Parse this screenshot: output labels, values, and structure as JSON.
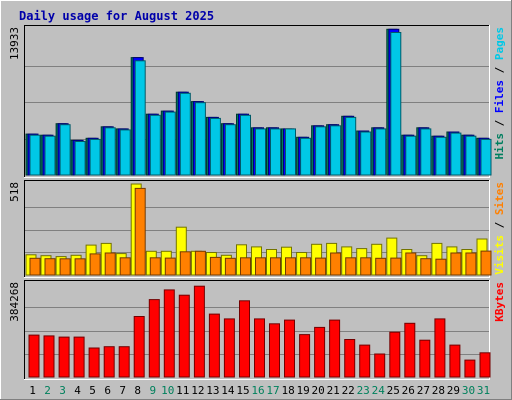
{
  "chart_data": {
    "type": "bar",
    "title": "Daily usage for August 2025",
    "colors": {
      "background": "#c0c0c0",
      "title": "#0000aa",
      "hits": "#007f5f",
      "files": "#0000ff",
      "pages": "#00c8e6",
      "visits": "#ffff00",
      "sites": "#ff8000",
      "kbytes": "#ff0000",
      "weekend_label": "#00805c",
      "weekday_label": "#000000"
    },
    "x": [
      "1",
      "2",
      "3",
      "4",
      "5",
      "6",
      "7",
      "8",
      "9",
      "10",
      "11",
      "12",
      "13",
      "14",
      "15",
      "16",
      "17",
      "18",
      "19",
      "20",
      "21",
      "22",
      "23",
      "24",
      "25",
      "26",
      "27",
      "28",
      "29",
      "30",
      "31"
    ],
    "weekend": [
      false,
      true,
      true,
      false,
      false,
      false,
      false,
      false,
      true,
      true,
      false,
      false,
      false,
      false,
      false,
      true,
      true,
      false,
      false,
      false,
      false,
      false,
      true,
      true,
      false,
      false,
      false,
      false,
      false,
      true,
      true
    ],
    "panels": [
      {
        "id": "hits-files-pages",
        "max_label": "13933",
        "ymax": 13933,
        "right_labels": [
          {
            "text": "Hits",
            "color": "#007f5f"
          },
          {
            "text": " / ",
            "color": "#000000"
          },
          {
            "text": "Files",
            "color": "#0000ff"
          },
          {
            "text": " / ",
            "color": "#000000"
          },
          {
            "text": "Pages",
            "color": "#00c8e6"
          }
        ],
        "series": [
          {
            "name": "Hits",
            "key": "hits",
            "values": [
              3900,
              3800,
              4900,
              3300,
              3500,
              4600,
              4400,
              11200,
              5800,
              6100,
              7900,
              7000,
              5500,
              4900,
              5800,
              4500,
              4500,
              4400,
              3600,
              4700,
              4800,
              5600,
              4200,
              4500,
              13900,
              3800,
              4500,
              3700,
              4100,
              3800,
              3500
            ]
          },
          {
            "name": "Files",
            "key": "files",
            "values": [
              3900,
              3800,
              4900,
              3300,
              3500,
              4600,
              4400,
              11200,
              5800,
              6100,
              7900,
              7000,
              5500,
              4900,
              5800,
              4500,
              4500,
              4400,
              3600,
              4700,
              4800,
              5600,
              4200,
              4500,
              13900,
              3800,
              4500,
              3700,
              4100,
              3800,
              3500
            ]
          },
          {
            "name": "Pages",
            "key": "pages",
            "values": [
              3800,
              3700,
              4800,
              3200,
              3400,
              4500,
              4300,
              10900,
              5700,
              6000,
              7800,
              6900,
              5400,
              4800,
              5700,
              4400,
              4400,
              4400,
              3500,
              4600,
              4700,
              5500,
              4100,
              4400,
              13600,
              3700,
              4400,
              3600,
              4000,
              3700,
              3400
            ]
          }
        ]
      },
      {
        "id": "visits-sites",
        "max_label": "518",
        "ymax": 518,
        "right_labels": [
          {
            "text": "Visits",
            "color": "#ffff00"
          },
          {
            "text": " / ",
            "color": "#000000"
          },
          {
            "text": "Sites",
            "color": "#ff8000"
          }
        ],
        "series": [
          {
            "name": "Visits",
            "key": "visits",
            "values": [
              115,
              110,
              105,
              112,
              170,
              180,
              122,
              518,
              135,
              135,
              272,
              135,
              128,
              112,
              172,
              160,
              145,
              158,
              128,
              175,
              180,
              160,
              150,
              175,
              210,
              145,
              110,
              180,
              160,
              145,
              205
            ]
          },
          {
            "name": "Sites",
            "key": "sites",
            "values": [
              95,
              93,
              92,
              92,
              120,
              125,
              98,
              493,
              98,
              96,
              132,
              135,
              100,
              95,
              98,
              98,
              98,
              98,
              98,
              96,
              125,
              98,
              98,
              95,
              96,
              125,
              93,
              90,
              125,
              125,
              136
            ]
          }
        ]
      },
      {
        "id": "kbytes",
        "max_label": "384268",
        "ymax": 384268,
        "right_labels": [
          {
            "text": "KBytes",
            "color": "#ff0000"
          }
        ],
        "series": [
          {
            "name": "KBytes",
            "key": "kbytes",
            "values": [
              173000,
              170000,
              165000,
              165000,
              120000,
              125000,
              125000,
              250000,
              320000,
              360000,
              338000,
              375000,
              260000,
              240000,
              315000,
              240000,
              220000,
              235000,
              175000,
              205000,
              235000,
              155000,
              132000,
              95000,
              185000,
              222000,
              152000,
              240000,
              132000,
              70000,
              100000
            ]
          }
        ]
      }
    ]
  }
}
